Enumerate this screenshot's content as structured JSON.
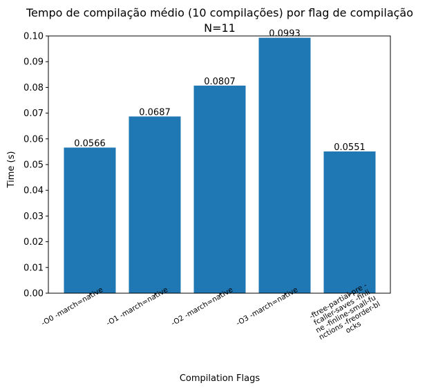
{
  "chart_data": {
    "type": "bar",
    "title": "Tempo de compilação médio (10 compilações) por flag de compilação",
    "subtitle": "N=11",
    "xlabel": "Compilation Flags",
    "ylabel": "Time (s)",
    "categories": [
      "-O0 -march=native",
      "-O1 -march=native",
      "-O2 -march=native",
      "-O3 -march=native",
      [
        "-ftree-partial-pre -",
        "fcaller-saves -finli",
        "ne -finline-small-fu",
        "nctions -freorder-bl",
        "ocks"
      ]
    ],
    "values": [
      0.0566,
      0.0687,
      0.0807,
      0.0993,
      0.0551
    ],
    "data_labels": [
      "0.0566",
      "0.0687",
      "0.0807",
      "0.0993",
      "0.0551"
    ],
    "yticks": [
      "0.00",
      "0.01",
      "0.02",
      "0.03",
      "0.04",
      "0.05",
      "0.06",
      "0.07",
      "0.08",
      "0.09",
      "0.10"
    ],
    "ylim": [
      0,
      0.1
    ],
    "bar_color": "#1f77b4",
    "grid": false,
    "legend": "none"
  }
}
